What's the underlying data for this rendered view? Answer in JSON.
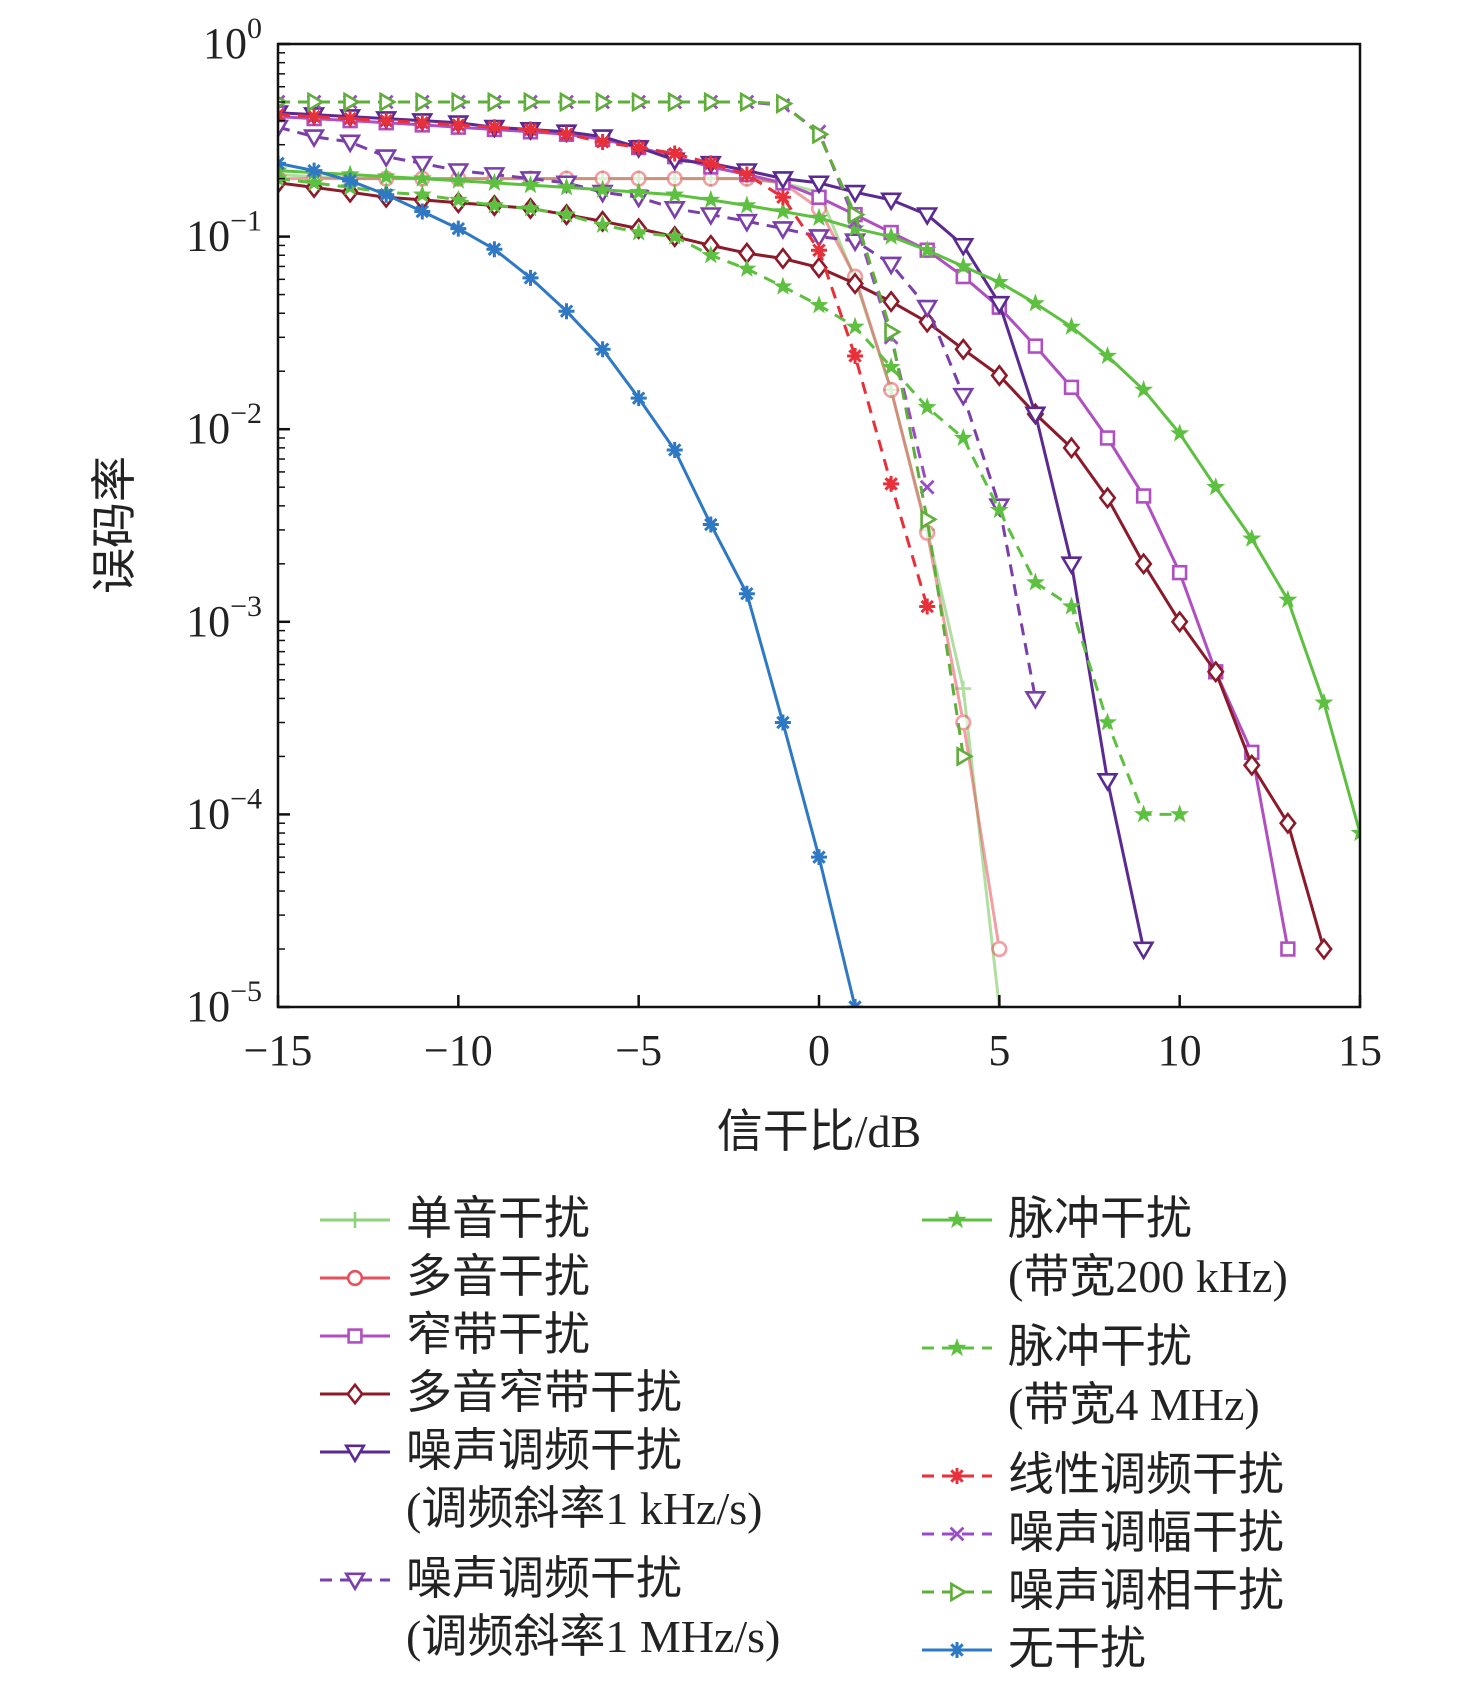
{
  "chart_data": {
    "type": "line",
    "title": "",
    "xlabel": "信干比/dB",
    "ylabel": "误码率",
    "xlim": [
      -15,
      15
    ],
    "ylim_log10": [
      -5,
      0
    ],
    "xticks": [
      -15,
      -10,
      -5,
      0,
      5,
      10,
      15
    ],
    "xtick_labels": [
      "−15",
      "−10",
      "−5",
      "0",
      "5",
      "10",
      "15"
    ],
    "yticks_exp": [
      0,
      -1,
      -2,
      -3,
      -4,
      -5
    ],
    "ytick_labels": [
      {
        "base": "10",
        "exp": "0"
      },
      {
        "base": "10",
        "exp": "−1"
      },
      {
        "base": "10",
        "exp": "−2"
      },
      {
        "base": "10",
        "exp": "−3"
      },
      {
        "base": "10",
        "exp": "−4"
      },
      {
        "base": "10",
        "exp": "−5"
      }
    ],
    "series": [
      {
        "name": "单音干扰",
        "label_lines": [
          "单音干扰"
        ],
        "color": "#8fd27a",
        "dash": false,
        "marker": "plus",
        "opacity": 0.7,
        "x": [
          -15,
          -14,
          -13,
          -12,
          -11,
          -10,
          -9,
          -8,
          -7,
          -6,
          -5,
          -4,
          -3,
          -2,
          -1,
          0,
          1,
          2,
          3,
          4,
          5
        ],
        "y": [
          0.21,
          0.205,
          0.2,
          0.2,
          0.2,
          0.2,
          0.2,
          0.2,
          0.2,
          0.2,
          0.2,
          0.2,
          0.2,
          0.2,
          0.19,
          0.17,
          0.06,
          0.016,
          0.003,
          0.00045,
          1e-05
        ]
      },
      {
        "name": "多音干扰",
        "label_lines": [
          "多音干扰"
        ],
        "color": "#e8505b",
        "dash": false,
        "marker": "circle",
        "opacity": 0.55,
        "x": [
          -15,
          -14,
          -13,
          -12,
          -11,
          -10,
          -9,
          -8,
          -7,
          -6,
          -5,
          -4,
          -3,
          -2,
          -1,
          0,
          1,
          2,
          3,
          4,
          5
        ],
        "y": [
          0.2,
          0.2,
          0.2,
          0.2,
          0.2,
          0.2,
          0.2,
          0.2,
          0.2,
          0.2,
          0.2,
          0.2,
          0.2,
          0.2,
          0.19,
          0.14,
          0.062,
          0.016,
          0.0029,
          0.0003,
          2e-05
        ]
      },
      {
        "name": "窄带干扰",
        "label_lines": [
          "窄带干扰"
        ],
        "color": "#b04fc0",
        "dash": false,
        "marker": "square",
        "opacity": 1,
        "x": [
          -15,
          -14,
          -13,
          -12,
          -11,
          -10,
          -9,
          -8,
          -7,
          -6,
          -5,
          -4,
          -3,
          -2,
          -1,
          0,
          1,
          2,
          3,
          4,
          5,
          6,
          7,
          8,
          9,
          10,
          11,
          12,
          13
        ],
        "y": [
          0.42,
          0.41,
          0.4,
          0.39,
          0.38,
          0.37,
          0.36,
          0.35,
          0.34,
          0.32,
          0.29,
          0.26,
          0.23,
          0.21,
          0.19,
          0.16,
          0.13,
          0.105,
          0.085,
          0.062,
          0.043,
          0.027,
          0.0165,
          0.009,
          0.0045,
          0.0018,
          0.00055,
          0.00021,
          2e-05
        ]
      },
      {
        "name": "多音窄带干扰",
        "label_lines": [
          "多音窄带干扰"
        ],
        "color": "#8b1a2a",
        "dash": false,
        "marker": "diamond",
        "opacity": 1,
        "x": [
          -15,
          -14,
          -13,
          -12,
          -11,
          -10,
          -9,
          -8,
          -7,
          -6,
          -5,
          -4,
          -3,
          -2,
          -1,
          0,
          1,
          2,
          3,
          4,
          5,
          6,
          7,
          8,
          9,
          10,
          11,
          12,
          13,
          14
        ],
        "y": [
          0.19,
          0.18,
          0.17,
          0.16,
          0.155,
          0.15,
          0.145,
          0.14,
          0.13,
          0.12,
          0.11,
          0.1,
          0.09,
          0.082,
          0.077,
          0.069,
          0.057,
          0.046,
          0.036,
          0.026,
          0.019,
          0.012,
          0.008,
          0.0044,
          0.002,
          0.001,
          0.00055,
          0.00018,
          9e-05,
          2e-05
        ]
      },
      {
        "name": "噪声调频干扰(调频斜率1 kHz/s)",
        "label_lines": [
          "噪声调频干扰",
          "(调频斜率1 kHz/s)"
        ],
        "color": "#5b2a91",
        "dash": false,
        "marker": "tri_down",
        "opacity": 1,
        "x": [
          -15,
          -14,
          -13,
          -12,
          -11,
          -10,
          -9,
          -8,
          -7,
          -6,
          -5,
          -4,
          -3,
          -2,
          -1,
          0,
          1,
          2,
          3,
          4,
          5,
          6,
          7,
          8,
          9
        ],
        "y": [
          0.44,
          0.43,
          0.42,
          0.41,
          0.4,
          0.39,
          0.37,
          0.36,
          0.35,
          0.33,
          0.29,
          0.25,
          0.24,
          0.22,
          0.2,
          0.19,
          0.17,
          0.155,
          0.13,
          0.09,
          0.045,
          0.012,
          0.002,
          0.00015,
          2e-05
        ]
      },
      {
        "name": "噪声调频干扰(调频斜率1 MHz/s)",
        "label_lines": [
          "噪声调频干扰",
          "(调频斜率1 MHz/s)"
        ],
        "color": "#7a3fa8",
        "dash": true,
        "marker": "tri_down",
        "opacity": 1,
        "x": [
          -15,
          -14,
          -13,
          -12,
          -11,
          -10,
          -9,
          -8,
          -7,
          -6,
          -5,
          -4,
          -3,
          -2,
          -1,
          0,
          1,
          2,
          3,
          4,
          5,
          6
        ],
        "y": [
          0.37,
          0.33,
          0.31,
          0.26,
          0.24,
          0.22,
          0.21,
          0.2,
          0.19,
          0.17,
          0.16,
          0.14,
          0.13,
          0.12,
          0.11,
          0.1,
          0.095,
          0.072,
          0.043,
          0.015,
          0.004,
          0.0004
        ]
      },
      {
        "name": "脉冲干扰(带宽200 kHz)",
        "label_lines": [
          "脉冲干扰",
          "(带宽200 kHz)"
        ],
        "color": "#5ec040",
        "dash": false,
        "marker": "star",
        "opacity": 1,
        "x": [
          -15,
          -14,
          -13,
          -12,
          -11,
          -10,
          -9,
          -8,
          -7,
          -6,
          -5,
          -4,
          -3,
          -2,
          -1,
          0,
          1,
          2,
          3,
          4,
          5,
          6,
          7,
          8,
          9,
          10,
          11,
          12,
          13,
          14,
          15
        ],
        "y": [
          0.22,
          0.215,
          0.21,
          0.205,
          0.2,
          0.195,
          0.19,
          0.185,
          0.18,
          0.175,
          0.17,
          0.165,
          0.155,
          0.145,
          0.135,
          0.125,
          0.11,
          0.1,
          0.085,
          0.07,
          0.058,
          0.045,
          0.034,
          0.024,
          0.016,
          0.0095,
          0.005,
          0.0027,
          0.0013,
          0.00038,
          8e-05
        ]
      },
      {
        "name": "脉冲干扰(带宽4 MHz)",
        "label_lines": [
          "脉冲干扰",
          "(带宽4 MHz)"
        ],
        "color": "#5ec040",
        "dash": true,
        "marker": "star",
        "opacity": 1,
        "x": [
          -15,
          -14,
          -13,
          -12,
          -11,
          -10,
          -9,
          -8,
          -7,
          -6,
          -5,
          -4,
          -3,
          -2,
          -1,
          0,
          1,
          2,
          3,
          4,
          5,
          6,
          7,
          8,
          9,
          10
        ],
        "y": [
          0.2,
          0.19,
          0.18,
          0.17,
          0.165,
          0.155,
          0.145,
          0.14,
          0.13,
          0.115,
          0.105,
          0.1,
          0.08,
          0.068,
          0.055,
          0.044,
          0.034,
          0.021,
          0.013,
          0.009,
          0.0038,
          0.0016,
          0.0012,
          0.0003,
          0.0001,
          0.0001
        ]
      },
      {
        "name": "线性调频干扰",
        "label_lines": [
          "线性调频干扰"
        ],
        "color": "#e8303a",
        "dash": true,
        "marker": "asterisk",
        "opacity": 1,
        "x": [
          -15,
          -14,
          -13,
          -12,
          -11,
          -10,
          -9,
          -8,
          -7,
          -6,
          -5,
          -4,
          -3,
          -2,
          -1,
          0,
          1,
          2,
          3
        ],
        "y": [
          0.43,
          0.42,
          0.41,
          0.4,
          0.39,
          0.38,
          0.37,
          0.36,
          0.34,
          0.31,
          0.29,
          0.27,
          0.24,
          0.21,
          0.16,
          0.085,
          0.024,
          0.0052,
          0.0012
        ]
      },
      {
        "name": "噪声调幅干扰",
        "label_lines": [
          "噪声调幅干扰"
        ],
        "color": "#9a4bc8",
        "dash": true,
        "marker": "cross",
        "opacity": 1,
        "x": [
          -15,
          -14,
          -13,
          -12,
          -11,
          -10,
          -9,
          -8,
          -7,
          -6,
          -5,
          -4,
          -3,
          -2,
          -1,
          0,
          1,
          2,
          3
        ],
        "y": [
          0.5,
          0.5,
          0.5,
          0.5,
          0.5,
          0.5,
          0.5,
          0.5,
          0.5,
          0.5,
          0.5,
          0.5,
          0.5,
          0.5,
          0.48,
          0.35,
          0.12,
          0.03,
          0.005
        ]
      },
      {
        "name": "噪声调相干扰",
        "label_lines": [
          "噪声调相干扰"
        ],
        "color": "#5fae3a",
        "dash": true,
        "marker": "tri_right",
        "opacity": 1,
        "x": [
          -15,
          -14,
          -13,
          -12,
          -11,
          -10,
          -9,
          -8,
          -7,
          -6,
          -5,
          -4,
          -3,
          -2,
          -1,
          0,
          1,
          2,
          3,
          4
        ],
        "y": [
          0.5,
          0.5,
          0.5,
          0.5,
          0.5,
          0.5,
          0.5,
          0.5,
          0.5,
          0.5,
          0.5,
          0.5,
          0.5,
          0.5,
          0.49,
          0.34,
          0.13,
          0.032,
          0.0034,
          0.0002
        ]
      },
      {
        "name": "无干扰",
        "label_lines": [
          "无干扰"
        ],
        "color": "#2e78c4",
        "dash": false,
        "marker": "asterisk",
        "opacity": 1,
        "x": [
          -15,
          -14,
          -13,
          -12,
          -11,
          -10,
          -9,
          -8,
          -7,
          -6,
          -5,
          -4,
          -3,
          -2,
          -1,
          0,
          1
        ],
        "y": [
          0.24,
          0.22,
          0.195,
          0.165,
          0.135,
          0.11,
          0.086,
          0.061,
          0.041,
          0.026,
          0.0145,
          0.0078,
          0.0032,
          0.0014,
          0.0003,
          6e-05,
          1e-05
        ]
      }
    ],
    "legend": {
      "placement": "below",
      "columns": 2,
      "left_column": [
        0,
        1,
        2,
        3,
        4,
        5
      ],
      "right_column": [
        6,
        7,
        8,
        9,
        10,
        11
      ]
    }
  }
}
